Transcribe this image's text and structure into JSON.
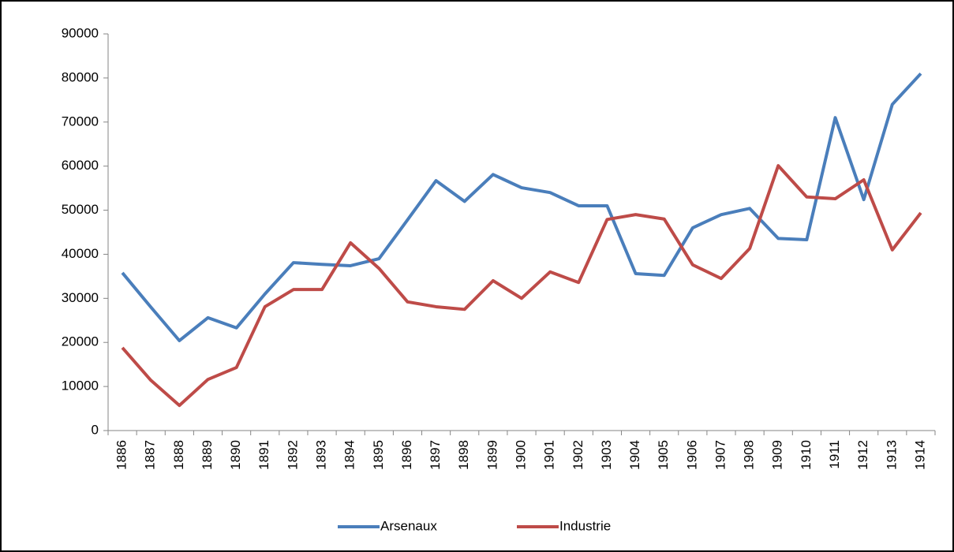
{
  "chart_data": {
    "type": "line",
    "categories": [
      "1886",
      "1887",
      "1888",
      "1889",
      "1890",
      "1891",
      "1892",
      "1893",
      "1894",
      "1895",
      "1896",
      "1897",
      "1898",
      "1899",
      "1900",
      "1901",
      "1902",
      "1903",
      "1904",
      "1905",
      "1906",
      "1907",
      "1908",
      "1909",
      "1910",
      "1911",
      "1912",
      "1913",
      "1914"
    ],
    "series": [
      {
        "name": "Arsenaux",
        "color": "#4a7ebb",
        "values": [
          35800,
          28000,
          20400,
          25600,
          23300,
          31000,
          38100,
          37700,
          37400,
          39000,
          47800,
          56700,
          52000,
          58100,
          55100,
          54000,
          51000,
          51000,
          35600,
          35200,
          46000,
          49000,
          50400,
          43600,
          43300,
          71000,
          52400,
          74000,
          81000
        ]
      },
      {
        "name": "Industrie",
        "color": "#be4b48",
        "values": [
          18800,
          11400,
          5700,
          11600,
          14300,
          28100,
          32000,
          32000,
          42600,
          36800,
          29200,
          28100,
          27500,
          34000,
          30000,
          36000,
          33600,
          47900,
          49000,
          48000,
          37600,
          34500,
          41300,
          60100,
          53000,
          52600,
          56900,
          41000,
          49400
        ]
      }
    ],
    "ylim": [
      0,
      90000
    ],
    "yticks": [
      0,
      10000,
      20000,
      30000,
      40000,
      50000,
      60000,
      70000,
      80000,
      90000
    ],
    "legend": "bottom",
    "grid": false
  }
}
